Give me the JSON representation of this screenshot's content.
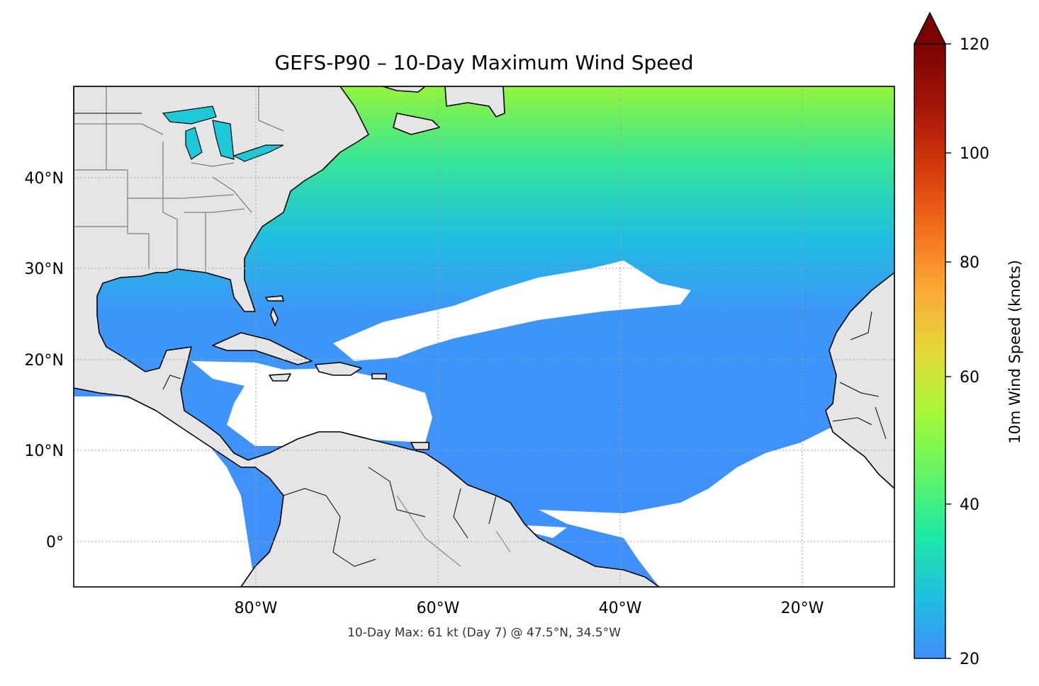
{
  "map": {
    "title": "GEFS-P90 – 10-Day Maximum Wind Speed",
    "caption": "10-Day Max: 61 kt (Day 7) @ 47.5°N, 34.5°W",
    "lon_labels": [
      "80°W",
      "60°W",
      "40°W",
      "20°W"
    ],
    "lat_labels": [
      "40°N",
      "30°N",
      "20°N",
      "10°N",
      "0°"
    ],
    "extent": {
      "lon_min": -100,
      "lon_max": -10,
      "lat_min": -5,
      "lat_max": 50
    }
  },
  "colorbar": {
    "label": "10m Wind Speed (knots)",
    "range": [
      20,
      120
    ],
    "extend": "max",
    "ticks": [
      "120",
      "100",
      "80",
      "60",
      "40",
      "20"
    ],
    "colors": [
      "#3f8ffb",
      "#1fbfe0",
      "#1de9a6",
      "#63f564",
      "#a6f736",
      "#e4d73a",
      "#fca935",
      "#f46d1c",
      "#d3390b",
      "#a5140a",
      "#7a0403"
    ]
  },
  "colors": {
    "land": "#e5e5e5",
    "ocean_nodata": "#ffffff"
  }
}
